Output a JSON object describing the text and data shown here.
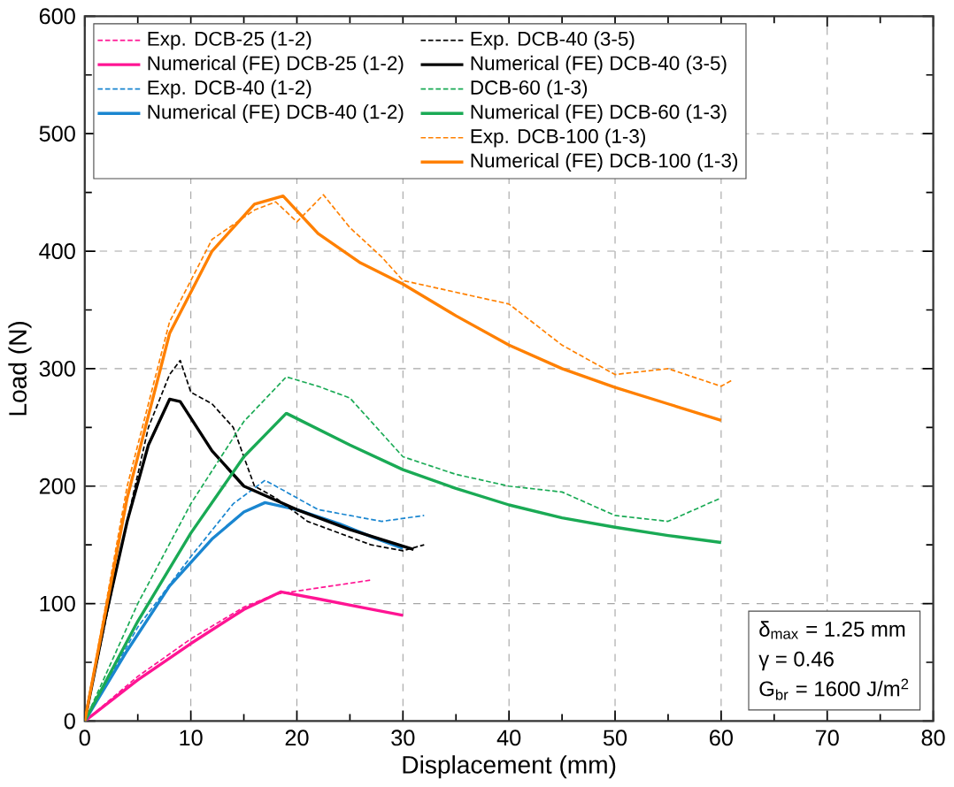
{
  "chart_data": {
    "type": "line",
    "xlabel": "Displacement (mm)",
    "ylabel": "Load (N)",
    "xlim": [
      0,
      80
    ],
    "ylim": [
      0,
      600
    ],
    "xticks": [
      0,
      10,
      20,
      30,
      40,
      50,
      60,
      70,
      80
    ],
    "yticks": [
      0,
      100,
      200,
      300,
      400,
      500,
      600
    ],
    "grid": true,
    "legend": "top",
    "marker": "none",
    "series": [
      {
        "name": "Exp. DCB-25 (1-2)",
        "color": "#ff1493",
        "line_style": "dashed",
        "x": [
          0,
          5,
          10,
          15,
          18,
          21,
          24,
          27
        ],
        "values": [
          0,
          38,
          70,
          97,
          108,
          112,
          116,
          120
        ]
      },
      {
        "name": "Numerical (FE) DCB-25 (1-2)",
        "color": "#ff1493",
        "line_style": "solid",
        "x": [
          0,
          5,
          10,
          15,
          18.5,
          22,
          26,
          30
        ],
        "values": [
          0,
          35,
          66,
          95,
          110,
          104,
          97,
          90
        ]
      },
      {
        "name": "Exp. DCB-40 (1-2)",
        "color": "#1a86d0",
        "line_style": "dashed",
        "x": [
          0,
          5,
          10,
          14,
          17,
          19,
          22,
          25,
          28,
          32
        ],
        "values": [
          0,
          80,
          140,
          185,
          205,
          195,
          180,
          175,
          170,
          175
        ]
      },
      {
        "name": "Numerical (FE) DCB-40 (1-2)",
        "color": "#1a86d0",
        "line_style": "solid",
        "x": [
          0,
          4,
          8,
          12,
          15,
          17,
          20,
          24,
          27,
          30
        ],
        "values": [
          0,
          60,
          115,
          155,
          178,
          186,
          180,
          168,
          157,
          147
        ]
      },
      {
        "name": "Exp. DCB-40 (3-5)",
        "color": "#000000",
        "line_style": "dashed",
        "x": [
          0,
          3,
          6,
          8,
          9,
          10,
          12,
          14,
          16,
          18,
          21,
          24,
          27,
          30,
          32
        ],
        "values": [
          0,
          130,
          250,
          295,
          307,
          280,
          270,
          250,
          200,
          190,
          170,
          160,
          150,
          145,
          150
        ]
      },
      {
        "name": "Numerical (FE) DCB-40 (3-5)",
        "color": "#000000",
        "line_style": "solid",
        "x": [
          0,
          2,
          4,
          6,
          8,
          9,
          12,
          15,
          20,
          25,
          31
        ],
        "values": [
          0,
          90,
          170,
          235,
          274,
          272,
          230,
          200,
          180,
          163,
          146
        ]
      },
      {
        "name": "DCB-60 (1-3)",
        "color": "#1aaa55",
        "line_style": "dashed",
        "x": [
          0,
          5,
          10,
          15,
          19,
          22,
          25,
          28,
          30,
          35,
          40,
          45,
          50,
          55,
          60
        ],
        "values": [
          0,
          100,
          185,
          255,
          293,
          285,
          275,
          245,
          225,
          210,
          200,
          195,
          175,
          170,
          190
        ]
      },
      {
        "name": "Numerical (FE) DCB-60 (1-3)",
        "color": "#1aaa55",
        "line_style": "solid",
        "x": [
          0,
          5,
          10,
          15,
          19,
          25,
          30,
          35,
          40,
          45,
          50,
          55,
          60
        ],
        "values": [
          0,
          85,
          160,
          225,
          262,
          235,
          214,
          198,
          184,
          173,
          165,
          158,
          152
        ]
      },
      {
        "name": "Exp. DCB-100 (1-3)",
        "color": "#ff8000",
        "line_style": "dashed",
        "x": [
          0,
          4,
          8,
          12,
          16,
          18,
          20,
          22.5,
          25,
          28,
          30,
          35,
          40,
          45,
          50,
          55,
          60,
          61
        ],
        "values": [
          0,
          200,
          340,
          410,
          435,
          442,
          425,
          448,
          420,
          395,
          375,
          365,
          355,
          320,
          295,
          300,
          285,
          290
        ]
      },
      {
        "name": "Numerical (FE) DCB-100 (1-3)",
        "color": "#ff8000",
        "line_style": "solid",
        "x": [
          0,
          4,
          8,
          12,
          16,
          18.7,
          22,
          26,
          30,
          35,
          40,
          45,
          50,
          55,
          60
        ],
        "values": [
          0,
          190,
          330,
          400,
          440,
          447,
          415,
          390,
          372,
          345,
          320,
          300,
          284,
          270,
          256
        ]
      }
    ],
    "annotations": [
      "δ$_{max}$ = 1.25 mm",
      "γ = 0.46",
      "G$_{br}$ = 1600 J/m$^{2}$"
    ]
  }
}
